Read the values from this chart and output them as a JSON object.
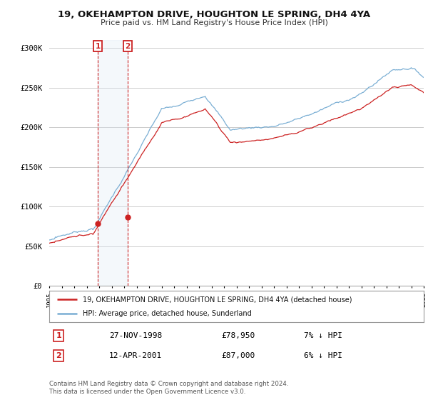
{
  "title": "19, OKEHAMPTON DRIVE, HOUGHTON LE SPRING, DH4 4YA",
  "subtitle": "Price paid vs. HM Land Registry's House Price Index (HPI)",
  "legend_line1": "19, OKEHAMPTON DRIVE, HOUGHTON LE SPRING, DH4 4YA (detached house)",
  "legend_line2": "HPI: Average price, detached house, Sunderland",
  "sale1_label": "1",
  "sale1_date": "27-NOV-1998",
  "sale1_price": "£78,950",
  "sale1_hpi": "7% ↓ HPI",
  "sale2_label": "2",
  "sale2_date": "12-APR-2001",
  "sale2_price": "£87,000",
  "sale2_hpi": "6% ↓ HPI",
  "footer": "Contains HM Land Registry data © Crown copyright and database right 2024.\nThis data is licensed under the Open Government Licence v3.0.",
  "hpi_color": "#7bafd4",
  "price_color": "#cc2222",
  "sale_marker_color": "#cc2222",
  "shaded_region_color": "#dde8f5",
  "ylim": [
    0,
    310000
  ],
  "yticks": [
    0,
    50000,
    100000,
    150000,
    200000,
    250000,
    300000
  ],
  "ytick_labels": [
    "£0",
    "£50K",
    "£100K",
    "£150K",
    "£200K",
    "£250K",
    "£300K"
  ],
  "year_start": 1995,
  "year_end": 2025,
  "background_color": "#ffffff",
  "grid_color": "#cccccc",
  "sale1_year": 1998.9,
  "sale2_year": 2001.3,
  "sale1_price_val": 78950,
  "sale2_price_val": 87000
}
